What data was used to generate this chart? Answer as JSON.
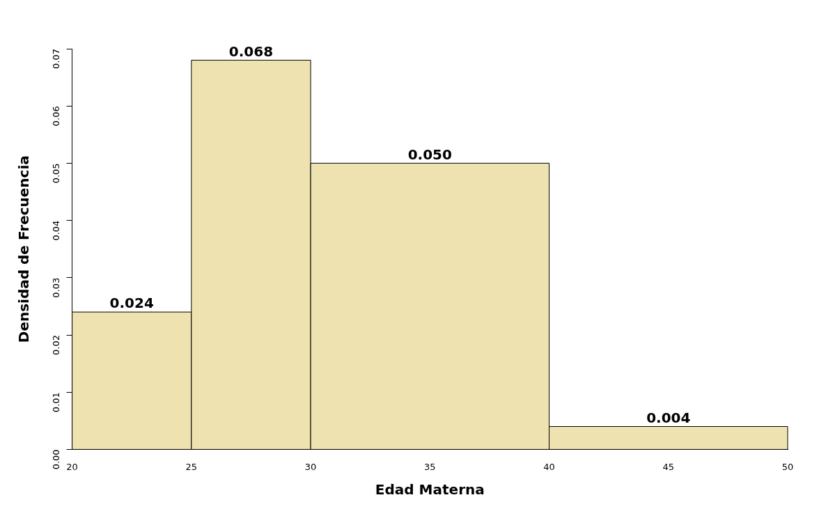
{
  "chart_data": {
    "type": "histogram",
    "xlabel": "Edad Materna",
    "ylabel": "Densidad de Frecuencia",
    "bins": [
      20,
      25,
      30,
      40,
      50
    ],
    "values": [
      0.024,
      0.068,
      0.05,
      0.004
    ],
    "value_labels": [
      "0.024",
      "0.068",
      "0.050",
      "0.004"
    ],
    "color": "#eee3b0",
    "xlim": [
      20,
      50
    ],
    "xticks": [
      20,
      25,
      30,
      35,
      40,
      45,
      50
    ],
    "ylim": [
      0,
      0.07
    ],
    "yticks": [
      {
        "value": 0,
        "label": "0.00"
      },
      {
        "value": 0.01,
        "label": "0.01"
      },
      {
        "value": 0.02,
        "label": "0.02"
      },
      {
        "value": 0.03,
        "label": "0.03"
      },
      {
        "value": 0.04,
        "label": "0.04"
      },
      {
        "value": 0.05,
        "label": "0.05"
      },
      {
        "value": 0.06,
        "label": "0.06"
      },
      {
        "value": 0.07,
        "label": "0.07"
      }
    ],
    "grid": false,
    "legend": false
  }
}
